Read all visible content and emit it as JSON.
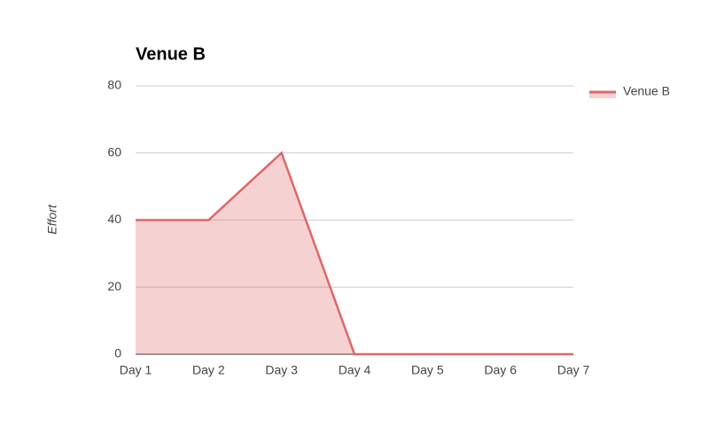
{
  "chart_data": {
    "type": "area",
    "title": "Venue B",
    "y_label": "Effort",
    "categories": [
      "Day 1",
      "Day 2",
      "Day 3",
      "Day 4",
      "Day 5",
      "Day 6",
      "Day 7"
    ],
    "series": [
      {
        "name": "Venue B",
        "color": "#e06666",
        "values": [
          40,
          40,
          60,
          0,
          0,
          0,
          0
        ]
      }
    ],
    "ylim": [
      0,
      80
    ],
    "yticks": [
      0,
      20,
      40,
      60,
      80
    ],
    "grid": true,
    "legend": "right"
  }
}
